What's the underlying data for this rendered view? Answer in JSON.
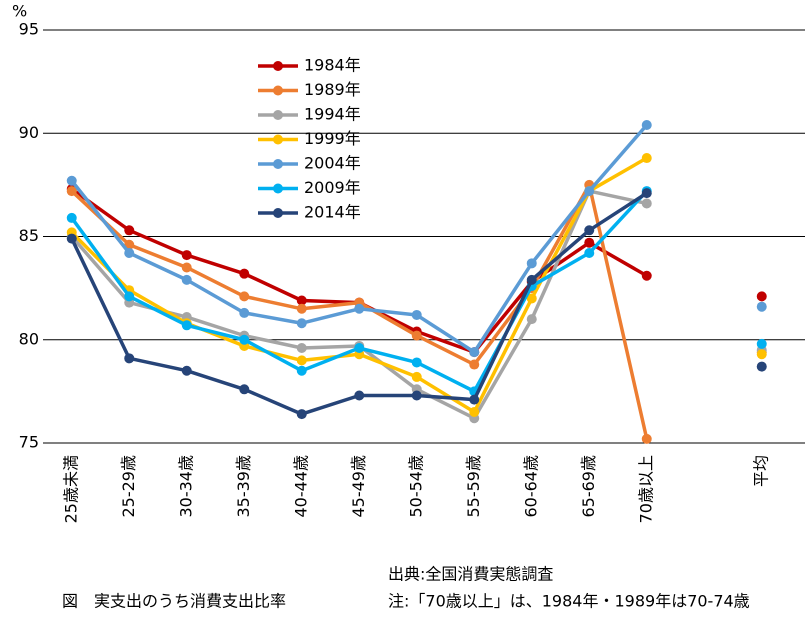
{
  "chart_data": {
    "type": "line",
    "title": "図　実支出のうち消費支出比率",
    "y_label": "%",
    "source": "出典:全国消費実態調査",
    "note": "注:「70歳以上」は、1984年・1989年は70-74歳",
    "categories": [
      "25歳未満",
      "25-29歳",
      "30-34歳",
      "35-39歳",
      "40-44歳",
      "45-49歳",
      "50-54歳",
      "55-59歳",
      "60-64歳",
      "65-69歳",
      "70歳以上",
      null,
      "平均"
    ],
    "ylim": [
      75,
      95
    ],
    "yticks": [
      75,
      80,
      85,
      90,
      95
    ],
    "grid": true,
    "legend": "upper-left",
    "series": [
      {
        "name": "1984年",
        "color": "#c00000",
        "values": [
          87.3,
          85.3,
          84.1,
          83.2,
          81.9,
          81.8,
          80.4,
          79.4,
          82.8,
          84.7,
          83.1,
          null,
          82.1
        ]
      },
      {
        "name": "1989年",
        "color": "#ed7d31",
        "values": [
          87.2,
          84.6,
          83.5,
          82.1,
          81.5,
          81.8,
          80.2,
          78.8,
          82.5,
          87.5,
          75.2,
          null,
          79.4
        ]
      },
      {
        "name": "1994年",
        "color": "#a5a5a5",
        "values": [
          85.0,
          81.8,
          81.1,
          80.2,
          79.6,
          79.7,
          77.6,
          76.2,
          81.0,
          87.2,
          86.6,
          null,
          79.5
        ]
      },
      {
        "name": "1999年",
        "color": "#ffc000",
        "values": [
          85.2,
          82.4,
          80.8,
          79.7,
          79.0,
          79.3,
          78.2,
          76.5,
          82.0,
          87.2,
          88.8,
          null,
          79.3
        ]
      },
      {
        "name": "2004年",
        "color": "#5b9bd5",
        "values": [
          87.7,
          84.2,
          82.9,
          81.3,
          80.8,
          81.5,
          81.2,
          79.4,
          83.7,
          87.2,
          90.4,
          null,
          81.6
        ]
      },
      {
        "name": "2009年",
        "color": "#00b0f0",
        "values": [
          85.9,
          82.1,
          80.7,
          80.0,
          78.5,
          79.6,
          78.9,
          77.5,
          82.6,
          84.2,
          87.2,
          null,
          79.8
        ]
      },
      {
        "name": "2014年",
        "color": "#264478",
        "values": [
          84.9,
          79.1,
          78.5,
          77.6,
          76.4,
          77.3,
          77.3,
          77.1,
          82.9,
          85.3,
          87.1,
          null,
          78.7
        ]
      }
    ]
  }
}
